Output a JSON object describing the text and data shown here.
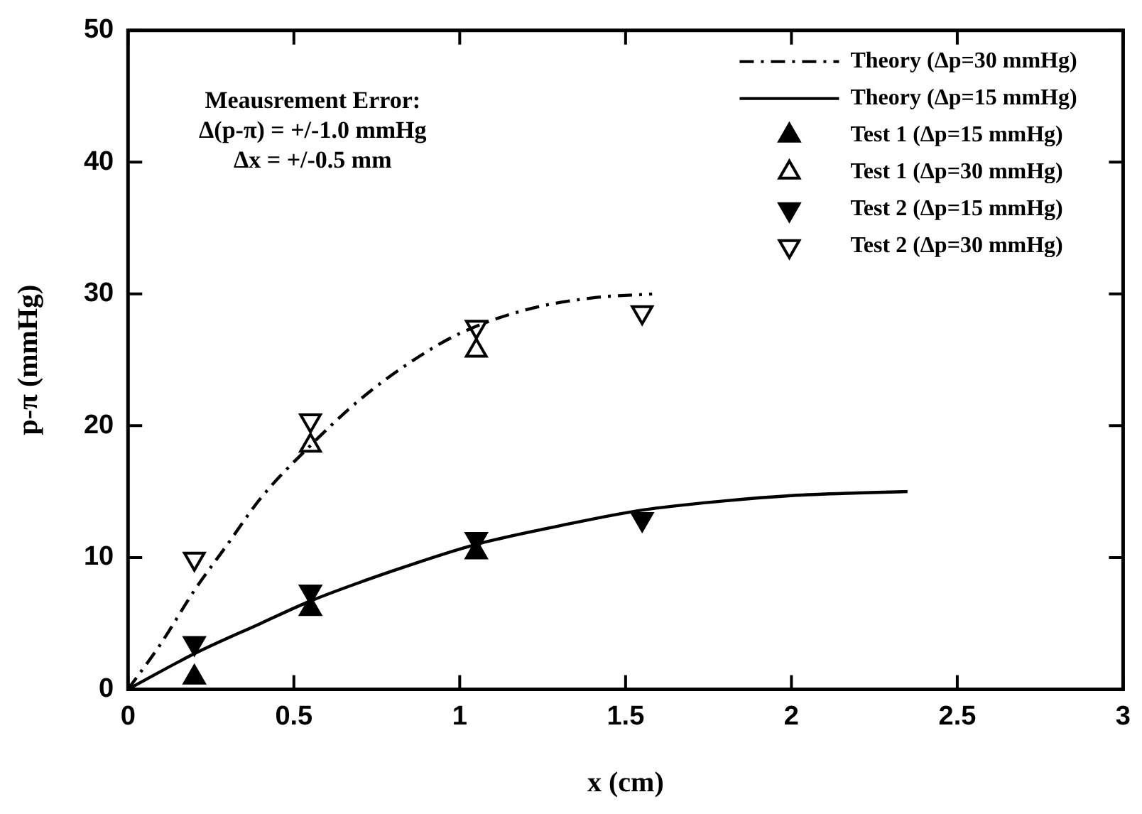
{
  "chart_data": {
    "type": "scatter",
    "xlabel": "x (cm)",
    "ylabel": "p-π (mmHg)",
    "xlim": [
      0,
      3
    ],
    "xticks": [
      0,
      0.5,
      1,
      1.5,
      2,
      2.5,
      3
    ],
    "ylim": [
      0,
      50
    ],
    "yticks": [
      0,
      10,
      20,
      30,
      40,
      50
    ],
    "grid": false,
    "legend": "top right",
    "annotations": [
      "Meausrement Error:",
      "Δ(p-π) = +/-1.0 mmHg",
      "Δx = +/-0.5 mm"
    ],
    "series": [
      {
        "name": "Theory (Δp=30 mmHg)",
        "type": "line",
        "color": "#000000",
        "line_style": "dashed",
        "marker": "none",
        "x": [
          0,
          0.1,
          0.2,
          0.3,
          0.4,
          0.55,
          0.7,
          0.85,
          1.0,
          1.2,
          1.4,
          1.58
        ],
        "values": [
          0,
          3.5,
          7.5,
          11,
          14.5,
          18.5,
          22,
          24.8,
          27,
          28.8,
          29.7,
          30
        ]
      },
      {
        "name": "Theory (Δp=15 mmHg)",
        "type": "line",
        "color": "#000000",
        "line_style": "solid",
        "marker": "none",
        "x": [
          0,
          0.2,
          0.4,
          0.55,
          0.8,
          1.05,
          1.3,
          1.55,
          1.8,
          2.0,
          2.2,
          2.35
        ],
        "values": [
          0,
          2.7,
          5,
          6.7,
          9,
          11,
          12.4,
          13.6,
          14.3,
          14.7,
          14.9,
          15
        ]
      },
      {
        "name": "Test 1 (Δp=15 mmHg)",
        "color": "#000000",
        "marker": "triangle",
        "x": [
          0.2,
          0.55,
          1.05
        ],
        "values": [
          0.9,
          6.1,
          10.4
        ]
      },
      {
        "name": "Test 1 (Δp=30 mmHg)",
        "color": "#000000",
        "marker": "triangle-open",
        "x": [
          0.55,
          1.05
        ],
        "values": [
          18.5,
          25.7
        ]
      },
      {
        "name": "Test 2 (Δp=15 mmHg)",
        "color": "#000000",
        "marker": "triangle-down",
        "x": [
          0.2,
          0.55,
          1.05,
          1.55
        ],
        "values": [
          3.5,
          7.4,
          11.4,
          12.9
        ]
      },
      {
        "name": "Test 2 (Δp=30 mmHg)",
        "color": "#000000",
        "marker": "triangle-down-open",
        "x": [
          0.2,
          0.55,
          1.05,
          1.55
        ],
        "values": [
          9.9,
          20.4,
          27.5,
          28.6
        ]
      }
    ]
  }
}
